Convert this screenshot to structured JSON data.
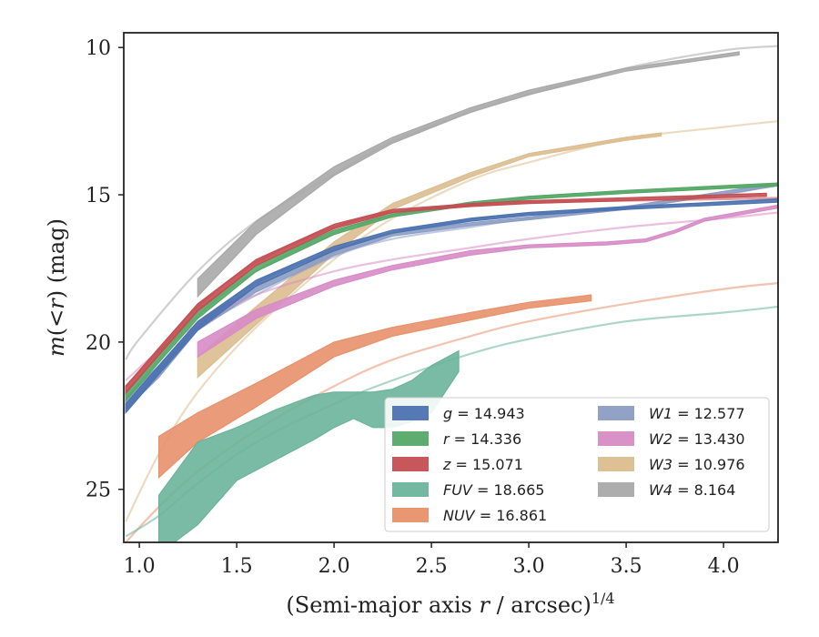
{
  "chart_data": {
    "type": "line",
    "title": "",
    "xlabel": "(Semi-major axis r / arcsec)^{1/4}",
    "xlabel_parts": {
      "pre": "(Semi-major axis ",
      "var": "r",
      "post": " / arcsec)",
      "sup": "1/4"
    },
    "ylabel": "m(<r) (mag)",
    "ylabel_parts": {
      "var": "m",
      "open": "(",
      "lt": "<",
      "var2": "r",
      "close": ")",
      "unit": " (mag)"
    },
    "xlim": [
      0.92,
      4.28
    ],
    "ylim": [
      26.8,
      9.5
    ],
    "y_inverted": true,
    "x_ticks": [
      1.0,
      1.5,
      2.0,
      2.5,
      3.0,
      3.5,
      4.0
    ],
    "x_tick_labels": [
      "1.0",
      "1.5",
      "2.0",
      "2.5",
      "3.0",
      "3.5",
      "4.0"
    ],
    "y_ticks": [
      10,
      15,
      20,
      25
    ],
    "y_tick_labels": [
      "10",
      "15",
      "20",
      "25"
    ],
    "grid": false,
    "legend_position": "lower-right",
    "legend": [
      {
        "label": "g = 14.943",
        "var": "g",
        "value": "14.943",
        "color": "#4c72b0"
      },
      {
        "label": "r = 14.336",
        "var": "r",
        "value": "14.336",
        "color": "#55a868"
      },
      {
        "label": "z = 15.071",
        "var": "z",
        "value": "15.071",
        "color": "#c44e52"
      },
      {
        "label": "FUV = 18.665",
        "var": "FUV",
        "value": "18.665",
        "color": "#6bb49b"
      },
      {
        "label": "NUV = 16.861",
        "var": "NUV",
        "value": "16.861",
        "color": "#e8916b"
      },
      {
        "label": "W1 = 12.577",
        "var": "W1",
        "value": "12.577",
        "color": "#8c9dc4"
      },
      {
        "label": "W2 = 13.430",
        "var": "W2",
        "value": "13.430",
        "color": "#d78cc5"
      },
      {
        "label": "W3 = 10.976",
        "var": "W3",
        "value": "10.976",
        "color": "#dcbd8f"
      },
      {
        "label": "W4 = 8.164",
        "var": "W4",
        "value": "8.164",
        "color": "#a9a9a9"
      }
    ],
    "series": [
      {
        "id": "W4",
        "color": "#a9a9a9",
        "model": [
          [
            0.93,
            20.6
          ],
          [
            1.0,
            19.9
          ],
          [
            1.3,
            17.6
          ],
          [
            1.6,
            15.9
          ],
          [
            2.0,
            14.3
          ],
          [
            2.3,
            13.2
          ],
          [
            2.7,
            12.2
          ],
          [
            3.0,
            11.6
          ],
          [
            3.5,
            10.7
          ],
          [
            4.0,
            10.1
          ],
          [
            4.28,
            9.95
          ]
        ],
        "band": [
          [
            1.3,
            17.85,
            18.45
          ],
          [
            1.6,
            15.9,
            16.35
          ],
          [
            2.0,
            14.05,
            14.35
          ],
          [
            2.3,
            13.05,
            13.25
          ],
          [
            2.7,
            12.05,
            12.2
          ],
          [
            3.0,
            11.45,
            11.6
          ],
          [
            3.5,
            10.7,
            10.8
          ],
          [
            4.08,
            10.15,
            10.25
          ]
        ]
      },
      {
        "id": "W3",
        "color": "#dcbd8f",
        "model": [
          [
            0.93,
            26.1
          ],
          [
            1.1,
            23.8
          ],
          [
            1.3,
            21.7
          ],
          [
            1.6,
            19.5
          ],
          [
            2.0,
            17.2
          ],
          [
            2.3,
            15.8
          ],
          [
            2.7,
            14.5
          ],
          [
            3.0,
            13.9
          ],
          [
            3.5,
            13.1
          ],
          [
            4.0,
            12.7
          ],
          [
            4.28,
            12.5
          ]
        ],
        "band": [
          [
            1.3,
            20.5,
            21.2
          ],
          [
            1.6,
            18.8,
            19.4
          ],
          [
            2.0,
            16.6,
            17.0
          ],
          [
            2.3,
            15.3,
            15.5
          ],
          [
            2.7,
            14.25,
            14.4
          ],
          [
            3.0,
            13.6,
            13.7
          ],
          [
            3.5,
            13.05,
            13.15
          ],
          [
            3.68,
            12.9,
            13.0
          ]
        ]
      },
      {
        "id": "W1",
        "color": "#8c9dc4",
        "model": [
          [
            0.93,
            21.9
          ],
          [
            1.1,
            20.9
          ],
          [
            1.3,
            19.6
          ],
          [
            1.6,
            18.4
          ],
          [
            2.0,
            17.1
          ],
          [
            2.3,
            16.5
          ],
          [
            2.7,
            16.1
          ],
          [
            3.0,
            15.8
          ],
          [
            3.5,
            15.4
          ],
          [
            4.0,
            15.0
          ],
          [
            4.28,
            14.65
          ]
        ],
        "band": [
          [
            0.93,
            21.9,
            22.3
          ],
          [
            1.1,
            20.8,
            21.2
          ],
          [
            1.3,
            19.3,
            19.6
          ],
          [
            1.6,
            18.1,
            18.3
          ],
          [
            2.0,
            16.9,
            17.05
          ],
          [
            2.3,
            16.3,
            16.4
          ],
          [
            2.7,
            15.95,
            16.05
          ],
          [
            3.0,
            15.75,
            15.85
          ],
          [
            3.5,
            15.4,
            15.5
          ],
          [
            4.28,
            14.6,
            14.7
          ]
        ]
      },
      {
        "id": "W2",
        "color": "#d78cc5",
        "model": [
          [
            0.93,
            21.3
          ],
          [
            1.1,
            20.3
          ],
          [
            1.3,
            19.4
          ],
          [
            1.6,
            18.4
          ],
          [
            2.0,
            17.6
          ],
          [
            2.3,
            17.2
          ],
          [
            2.7,
            16.8
          ],
          [
            3.0,
            16.5
          ],
          [
            3.5,
            16.1
          ],
          [
            4.0,
            15.8
          ],
          [
            4.28,
            15.6
          ]
        ],
        "band": [
          [
            1.3,
            20.0,
            20.5
          ],
          [
            1.6,
            18.9,
            19.2
          ],
          [
            2.0,
            17.9,
            18.1
          ],
          [
            2.3,
            17.4,
            17.55
          ],
          [
            2.7,
            16.9,
            17.05
          ],
          [
            3.0,
            16.7,
            16.8
          ],
          [
            3.4,
            16.6,
            16.7
          ],
          [
            3.6,
            16.5,
            16.6
          ],
          [
            3.75,
            16.2,
            16.3
          ],
          [
            3.9,
            15.8,
            15.9
          ],
          [
            4.28,
            15.35,
            15.45
          ]
        ]
      },
      {
        "id": "g",
        "color": "#4c72b0",
        "model": [
          [
            0.93,
            22.3
          ],
          [
            1.1,
            21.0
          ],
          [
            1.3,
            19.5
          ],
          [
            1.6,
            18.0
          ],
          [
            2.0,
            16.9
          ],
          [
            2.3,
            16.3
          ],
          [
            2.7,
            15.85
          ],
          [
            3.0,
            15.65
          ],
          [
            3.5,
            15.45
          ],
          [
            4.0,
            15.25
          ],
          [
            4.28,
            15.15
          ]
        ],
        "band": [
          [
            0.93,
            22.1,
            22.4
          ],
          [
            1.1,
            20.8,
            21.1
          ],
          [
            1.3,
            19.3,
            19.6
          ],
          [
            1.6,
            17.9,
            18.1
          ],
          [
            2.0,
            16.75,
            16.9
          ],
          [
            2.3,
            16.2,
            16.3
          ],
          [
            2.7,
            15.8,
            15.9
          ],
          [
            3.0,
            15.6,
            15.7
          ],
          [
            3.5,
            15.4,
            15.5
          ],
          [
            4.28,
            15.15,
            15.25
          ]
        ]
      },
      {
        "id": "r",
        "color": "#55a868",
        "model": [
          [
            0.93,
            21.9
          ],
          [
            1.1,
            20.6
          ],
          [
            1.3,
            19.1
          ],
          [
            1.6,
            17.6
          ],
          [
            2.0,
            16.3
          ],
          [
            2.3,
            15.7
          ],
          [
            2.7,
            15.3
          ],
          [
            3.0,
            15.1
          ],
          [
            3.5,
            14.9
          ],
          [
            4.0,
            14.75
          ],
          [
            4.28,
            14.65
          ]
        ],
        "band": [
          [
            0.93,
            21.7,
            22.0
          ],
          [
            1.1,
            20.4,
            20.7
          ],
          [
            1.3,
            18.9,
            19.2
          ],
          [
            1.6,
            17.4,
            17.6
          ],
          [
            2.0,
            16.2,
            16.35
          ],
          [
            2.3,
            15.65,
            15.75
          ],
          [
            2.7,
            15.25,
            15.35
          ],
          [
            3.0,
            15.05,
            15.15
          ],
          [
            3.5,
            14.85,
            14.95
          ],
          [
            4.28,
            14.6,
            14.7
          ]
        ]
      },
      {
        "id": "z",
        "color": "#c44e52",
        "model": [
          [
            0.93,
            21.5
          ],
          [
            1.1,
            20.3
          ],
          [
            1.3,
            18.8
          ],
          [
            1.6,
            17.3
          ],
          [
            2.0,
            16.1
          ],
          [
            2.3,
            15.6
          ],
          [
            2.7,
            15.35
          ],
          [
            3.0,
            15.25
          ],
          [
            3.5,
            15.2
          ],
          [
            4.0,
            15.15
          ],
          [
            4.28,
            15.1
          ]
        ],
        "band": [
          [
            0.93,
            21.5,
            21.75
          ],
          [
            1.1,
            20.2,
            20.45
          ],
          [
            1.3,
            18.7,
            18.95
          ],
          [
            1.6,
            17.2,
            17.4
          ],
          [
            2.0,
            16.0,
            16.15
          ],
          [
            2.3,
            15.5,
            15.6
          ],
          [
            2.7,
            15.3,
            15.4
          ],
          [
            3.0,
            15.2,
            15.3
          ],
          [
            3.5,
            15.1,
            15.2
          ],
          [
            4.22,
            14.95,
            15.05
          ]
        ]
      },
      {
        "id": "NUV",
        "color": "#e8916b",
        "model": [
          [
            0.93,
            26.8
          ],
          [
            1.1,
            25.6
          ],
          [
            1.3,
            24.4
          ],
          [
            1.6,
            23.0
          ],
          [
            2.0,
            21.5
          ],
          [
            2.3,
            20.6
          ],
          [
            2.7,
            19.8
          ],
          [
            3.0,
            19.3
          ],
          [
            3.5,
            18.7
          ],
          [
            4.0,
            18.2
          ],
          [
            4.28,
            18.0
          ]
        ],
        "band": [
          [
            1.1,
            23.2,
            24.6
          ],
          [
            1.3,
            22.4,
            23.4
          ],
          [
            1.6,
            21.4,
            22.2
          ],
          [
            2.0,
            20.0,
            20.5
          ],
          [
            2.3,
            19.5,
            19.8
          ],
          [
            2.7,
            19.0,
            19.25
          ],
          [
            3.0,
            18.65,
            18.85
          ],
          [
            3.32,
            18.4,
            18.6
          ]
        ]
      },
      {
        "id": "FUV",
        "color": "#6bb49b",
        "model": [
          [
            0.93,
            26.6
          ],
          [
            1.1,
            25.9
          ],
          [
            1.3,
            24.8
          ],
          [
            1.6,
            23.4
          ],
          [
            2.0,
            22.1
          ],
          [
            2.3,
            21.3
          ],
          [
            2.7,
            20.4
          ],
          [
            3.0,
            19.9
          ],
          [
            3.5,
            19.3
          ],
          [
            4.0,
            19.0
          ],
          [
            4.28,
            18.8
          ]
        ],
        "band": [
          [
            1.1,
            25.2,
            27.2
          ],
          [
            1.3,
            23.4,
            26.2
          ],
          [
            1.5,
            22.9,
            24.7
          ],
          [
            1.7,
            22.3,
            24.0
          ],
          [
            1.9,
            21.8,
            23.3
          ],
          [
            2.0,
            21.7,
            22.9
          ],
          [
            2.1,
            21.7,
            22.6
          ],
          [
            2.2,
            21.7,
            22.9
          ],
          [
            2.3,
            21.6,
            22.9
          ],
          [
            2.4,
            21.3,
            22.7
          ],
          [
            2.5,
            20.8,
            22.4
          ],
          [
            2.64,
            20.3,
            21.0
          ]
        ]
      }
    ]
  }
}
